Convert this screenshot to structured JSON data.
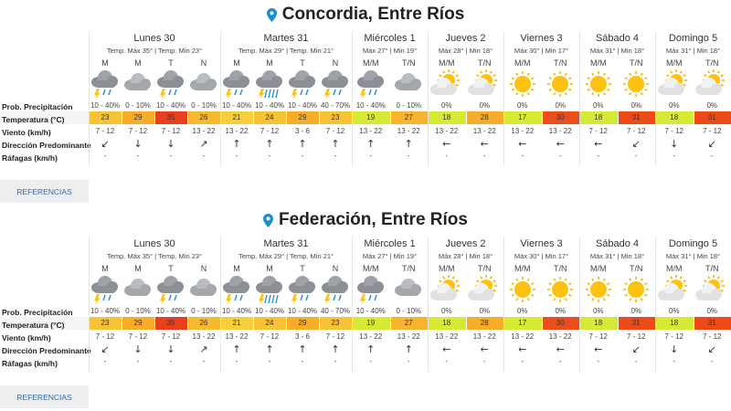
{
  "row_labels": [
    "Prob. Precipitación",
    "Temperatura (°C)",
    "Viento (km/h)",
    "Dirección Predominante",
    "Ráfagas (km/h)"
  ],
  "button": "REFERENCIAS",
  "blocks": [
    {
      "title": "Concordia, Entre Ríos",
      "days": [
        {
          "name": "Lunes 30",
          "temps": "Temp. Máx 35° | Temp. Min 23°",
          "periods": [
            {
              "label": "M",
              "icon": "storm",
              "precip": "10 - 40%",
              "temp": 23,
              "color": "#f7c234",
              "wind": "7 - 12",
              "dir": "↙",
              "gust": "-"
            },
            {
              "label": "M",
              "icon": "cloud",
              "precip": "0 - 10%",
              "temp": 29,
              "color": "#f7ad2a",
              "wind": "7 - 12",
              "dir": "↓",
              "gust": "-"
            },
            {
              "label": "T",
              "icon": "storm",
              "precip": "10 - 40%",
              "temp": 35,
              "color": "#e8401c",
              "wind": "7 - 12",
              "dir": "↓",
              "gust": "-"
            },
            {
              "label": "N",
              "icon": "cloud",
              "precip": "0 - 10%",
              "temp": 26,
              "color": "#f7b92e",
              "wind": "13 - 22",
              "dir": "↗",
              "gust": "-"
            }
          ]
        },
        {
          "name": "Martes 31",
          "temps": "Temp. Máx 29° | Temp. Min 21°",
          "periods": [
            {
              "label": "M",
              "icon": "storm",
              "precip": "10 - 40%",
              "temp": 21,
              "color": "#f6cf3a",
              "wind": "13 - 22",
              "dir": "↑",
              "gust": "-"
            },
            {
              "label": "M",
              "icon": "rainstorm",
              "precip": "10 - 40%",
              "temp": 24,
              "color": "#f7c234",
              "wind": "7 - 12",
              "dir": "↑",
              "gust": "-"
            },
            {
              "label": "T",
              "icon": "storm",
              "precip": "10 - 40%",
              "temp": 29,
              "color": "#f7ad2a",
              "wind": "3 - 6",
              "dir": "↑",
              "gust": "-"
            },
            {
              "label": "N",
              "icon": "storm",
              "precip": "40 - 70%",
              "temp": 23,
              "color": "#f7c234",
              "wind": "7 - 12",
              "dir": "↑",
              "gust": "-"
            }
          ]
        },
        {
          "name": "Miércoles 1",
          "temps": "Máx 27° | Min 19°",
          "periods": [
            {
              "label": "M/M",
              "icon": "storm",
              "precip": "10 - 40%",
              "temp": 19,
              "color": "#d6ea34",
              "wind": "13 - 22",
              "dir": "↑",
              "gust": "-"
            },
            {
              "label": "T/N",
              "icon": "cloud",
              "precip": "0 - 10%",
              "temp": 27,
              "color": "#f7b42c",
              "wind": "13 - 22",
              "dir": "↑",
              "gust": "-"
            }
          ]
        },
        {
          "name": "Jueves 2",
          "temps": "Máx 28° | Min 18°",
          "periods": [
            {
              "label": "M/M",
              "icon": "partly",
              "precip": "0%",
              "temp": 18,
              "color": "#d6ea34",
              "wind": "13 - 22",
              "dir": "←",
              "gust": "-"
            },
            {
              "label": "T/N",
              "icon": "partly",
              "precip": "0%",
              "temp": 28,
              "color": "#f7ad2a",
              "wind": "13 - 22",
              "dir": "←",
              "gust": "-"
            }
          ]
        },
        {
          "name": "Viernes 3",
          "temps": "Máx 30° | Min 17°",
          "periods": [
            {
              "label": "M/M",
              "icon": "sun",
              "precip": "0%",
              "temp": 17,
              "color": "#d6ea34",
              "wind": "13 - 22",
              "dir": "←",
              "gust": "-"
            },
            {
              "label": "T/N",
              "icon": "sun",
              "precip": "0%",
              "temp": 30,
              "color": "#ea4e1c",
              "wind": "13 - 22",
              "dir": "←",
              "gust": "-"
            }
          ]
        },
        {
          "name": "Sábado 4",
          "temps": "Máx 31° | Min 18°",
          "periods": [
            {
              "label": "M/M",
              "icon": "sun",
              "precip": "0%",
              "temp": 18,
              "color": "#d6ea34",
              "wind": "7 - 12",
              "dir": "←",
              "gust": "-"
            },
            {
              "label": "T/N",
              "icon": "sun",
              "precip": "0%",
              "temp": 31,
              "color": "#ee4a18",
              "wind": "7 - 12",
              "dir": "↙",
              "gust": "-"
            }
          ]
        },
        {
          "name": "Domingo 5",
          "temps": "Máx 31° | Min 18°",
          "periods": [
            {
              "label": "M/M",
              "icon": "partly",
              "precip": "0%",
              "temp": 18,
              "color": "#d6ea34",
              "wind": "7 - 12",
              "dir": "↓",
              "gust": "-"
            },
            {
              "label": "T/N",
              "icon": "partly",
              "precip": "0%",
              "temp": 31,
              "color": "#ee4a18",
              "wind": "7 - 12",
              "dir": "↙",
              "gust": "-"
            }
          ]
        }
      ]
    },
    {
      "title": "Federación, Entre Ríos",
      "days": [
        {
          "name": "Lunes 30",
          "temps": "Temp. Máx 35° | Temp. Min 23°",
          "periods": [
            {
              "label": "M",
              "icon": "storm",
              "precip": "10 - 40%",
              "temp": 23,
              "color": "#f7c234",
              "wind": "7 - 12",
              "dir": "↙",
              "gust": "-"
            },
            {
              "label": "M",
              "icon": "cloud",
              "precip": "0 - 10%",
              "temp": 29,
              "color": "#f7ad2a",
              "wind": "7 - 12",
              "dir": "↓",
              "gust": "-"
            },
            {
              "label": "T",
              "icon": "storm",
              "precip": "10 - 40%",
              "temp": 35,
              "color": "#e8401c",
              "wind": "7 - 12",
              "dir": "↓",
              "gust": "-"
            },
            {
              "label": "N",
              "icon": "cloud",
              "precip": "0 - 10%",
              "temp": 26,
              "color": "#f7b92e",
              "wind": "13 - 22",
              "dir": "↗",
              "gust": "-"
            }
          ]
        },
        {
          "name": "Martes 31",
          "temps": "Temp. Máx 29° | Temp. Min 21°",
          "periods": [
            {
              "label": "M",
              "icon": "storm",
              "precip": "10 - 40%",
              "temp": 21,
              "color": "#f6cf3a",
              "wind": "13 - 22",
              "dir": "↑",
              "gust": "-"
            },
            {
              "label": "M",
              "icon": "rainstorm",
              "precip": "10 - 40%",
              "temp": 24,
              "color": "#f7c234",
              "wind": "7 - 12",
              "dir": "↑",
              "gust": "-"
            },
            {
              "label": "T",
              "icon": "storm",
              "precip": "10 - 40%",
              "temp": 29,
              "color": "#f7ad2a",
              "wind": "3 - 6",
              "dir": "↑",
              "gust": "-"
            },
            {
              "label": "N",
              "icon": "storm",
              "precip": "40 - 70%",
              "temp": 23,
              "color": "#f7c234",
              "wind": "7 - 12",
              "dir": "↑",
              "gust": "-"
            }
          ]
        },
        {
          "name": "Miércoles 1",
          "temps": "Máx 27° | Min 19°",
          "periods": [
            {
              "label": "M/M",
              "icon": "storm",
              "precip": "10 - 40%",
              "temp": 19,
              "color": "#d6ea34",
              "wind": "13 - 22",
              "dir": "↑",
              "gust": "-"
            },
            {
              "label": "T/N",
              "icon": "cloud",
              "precip": "0 - 10%",
              "temp": 27,
              "color": "#f7b42c",
              "wind": "13 - 22",
              "dir": "↑",
              "gust": "-"
            }
          ]
        },
        {
          "name": "Jueves 2",
          "temps": "Máx 28° | Min 18°",
          "periods": [
            {
              "label": "M/M",
              "icon": "partly",
              "precip": "0%",
              "temp": 18,
              "color": "#d6ea34",
              "wind": "13 - 22",
              "dir": "←",
              "gust": "-"
            },
            {
              "label": "T/N",
              "icon": "partly",
              "precip": "0%",
              "temp": 28,
              "color": "#f7ad2a",
              "wind": "13 - 22",
              "dir": "←",
              "gust": "-"
            }
          ]
        },
        {
          "name": "Viernes 3",
          "temps": "Máx 30° | Min 17°",
          "periods": [
            {
              "label": "M/M",
              "icon": "sun",
              "precip": "0%",
              "temp": 17,
              "color": "#d6ea34",
              "wind": "13 - 22",
              "dir": "←",
              "gust": "-"
            },
            {
              "label": "T/N",
              "icon": "sun",
              "precip": "0%",
              "temp": 30,
              "color": "#ea4e1c",
              "wind": "13 - 22",
              "dir": "←",
              "gust": "-"
            }
          ]
        },
        {
          "name": "Sábado 4",
          "temps": "Máx 31° | Min 18°",
          "periods": [
            {
              "label": "M/M",
              "icon": "sun",
              "precip": "0%",
              "temp": 18,
              "color": "#d6ea34",
              "wind": "7 - 12",
              "dir": "←",
              "gust": "-"
            },
            {
              "label": "T/N",
              "icon": "sun",
              "precip": "0%",
              "temp": 31,
              "color": "#ee4a18",
              "wind": "7 - 12",
              "dir": "↙",
              "gust": "-"
            }
          ]
        },
        {
          "name": "Domingo 5",
          "temps": "Máx 31° | Min 18°",
          "periods": [
            {
              "label": "M/M",
              "icon": "partly",
              "precip": "0%",
              "temp": 18,
              "color": "#d6ea34",
              "wind": "7 - 12",
              "dir": "↓",
              "gust": "-"
            },
            {
              "label": "T/N",
              "icon": "partly",
              "precip": "0%",
              "temp": 31,
              "color": "#ee4a18",
              "wind": "7 - 12",
              "dir": "↙",
              "gust": "-"
            }
          ]
        }
      ]
    }
  ]
}
